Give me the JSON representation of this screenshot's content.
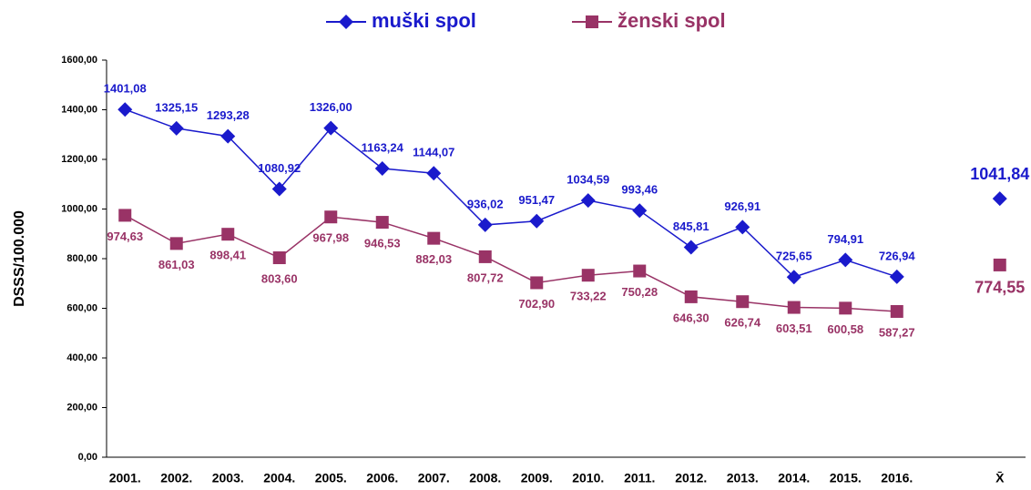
{
  "chart_data": {
    "type": "line",
    "y_label": "DSSS/100.000",
    "categories": [
      "2001.",
      "2002.",
      "2003.",
      "2004.",
      "2005.",
      "2006.",
      "2007.",
      "2008.",
      "2009.",
      "2010.",
      "2011.",
      "2012.",
      "2013.",
      "2014.",
      "2015.",
      "2016.",
      null,
      "X̄"
    ],
    "series": [
      {
        "name": "muški spol",
        "color": "#1a1acc",
        "marker": "diamond",
        "values": [
          1401.08,
          1325.15,
          1293.28,
          1080.92,
          1326.0,
          1163.24,
          1144.07,
          936.02,
          951.47,
          1034.59,
          993.46,
          845.81,
          926.91,
          725.65,
          794.91,
          726.94,
          null,
          1041.84
        ],
        "value_labels": [
          "1401,08",
          "1325,15",
          "1293,28",
          "1080,92",
          "1326,00",
          "1163,24",
          "1144,07",
          "936,02",
          "951,47",
          "1034,59",
          "993,46",
          "845,81",
          "926,91",
          "725,65",
          "794,91",
          "726,94",
          null,
          "1041,84"
        ]
      },
      {
        "name": "ženski spol",
        "color": "#993366",
        "marker": "square",
        "values": [
          974.63,
          861.03,
          898.41,
          803.6,
          967.98,
          946.53,
          882.03,
          807.72,
          702.9,
          733.22,
          750.28,
          646.3,
          626.74,
          603.51,
          600.58,
          587.27,
          null,
          774.55
        ],
        "value_labels": [
          "974,63",
          "861,03",
          "898,41",
          "803,60",
          "967,98",
          "946,53",
          "882,03",
          "807,72",
          "702,90",
          "733,22",
          "750,28",
          "646,30",
          "626,74",
          "603,51",
          "600,58",
          "587,27",
          null,
          "774,55"
        ]
      }
    ],
    "ylim": [
      0,
      1600
    ],
    "yticks": [
      {
        "value": 0,
        "label": "0,00"
      },
      {
        "value": 200,
        "label": "200,00"
      },
      {
        "value": 400,
        "label": "400,00"
      },
      {
        "value": 600,
        "label": "600,00"
      },
      {
        "value": 800,
        "label": "800,00"
      },
      {
        "value": 1000,
        "label": "1000,00"
      },
      {
        "value": 1200,
        "label": "1200,00"
      },
      {
        "value": 1400,
        "label": "1400,00"
      },
      {
        "value": 1600,
        "label": "1600,00"
      }
    ],
    "grid": false,
    "legend": "top"
  }
}
